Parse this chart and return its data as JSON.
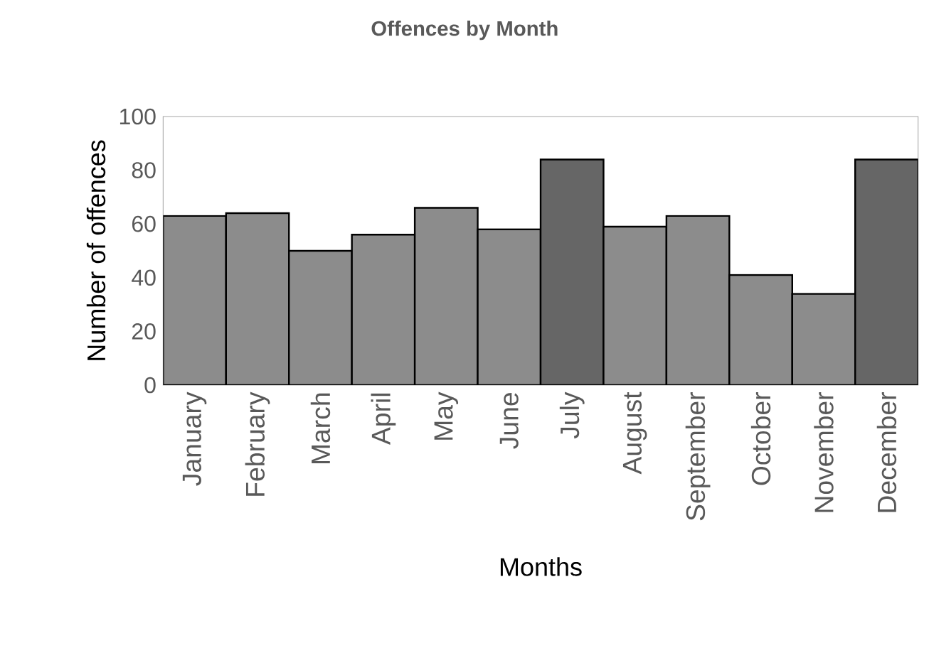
{
  "chart_data": {
    "type": "bar",
    "title": "Offences by Month",
    "xlabel": "Months",
    "ylabel": "Number of offences",
    "categories": [
      "January",
      "February",
      "March",
      "April",
      "May",
      "June",
      "July",
      "August",
      "September",
      "October",
      "November",
      "December"
    ],
    "values": [
      63,
      64,
      50,
      56,
      66,
      58,
      84,
      59,
      63,
      41,
      34,
      84
    ],
    "colors": [
      "#8c8c8c",
      "#8c8c8c",
      "#8c8c8c",
      "#8c8c8c",
      "#8c8c8c",
      "#8c8c8c",
      "#666666",
      "#8c8c8c",
      "#8c8c8c",
      "#8c8c8c",
      "#8c8c8c",
      "#666666"
    ],
    "ylim": [
      0,
      100
    ],
    "yticks": [
      0,
      20,
      40,
      60,
      80,
      100
    ],
    "grid": false
  }
}
